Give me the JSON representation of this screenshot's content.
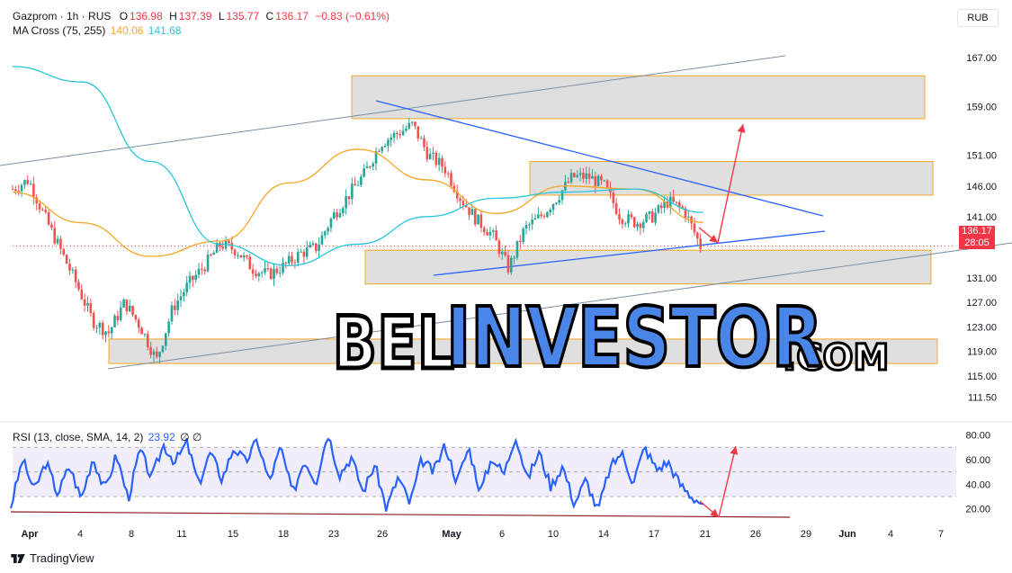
{
  "legend": {
    "symbol": "Gazprom · 1h · RUS",
    "o_label": "O",
    "o_value": "136.98",
    "h_label": "H",
    "h_value": "137.39",
    "l_label": "L",
    "l_value": "135.77",
    "c_label": "C",
    "c_value": "136.17",
    "change": "−0.83 (−0.61%)",
    "ma_name": "MA Cross (75, 255)",
    "ma_fast": "140.06",
    "ma_slow": "141.68",
    "rsi_name": "RSI (13, close, SMA, 14, 2)",
    "rsi_value": "23.92",
    "rsi_ext": "∅ ∅"
  },
  "currency": "RUB",
  "price_tag": {
    "price": "136.17",
    "countdown": "28:05"
  },
  "brand": "TradingView",
  "watermark": {
    "part1": "BEL",
    "part2": "INVESTOR",
    "part3": ".COM"
  },
  "colors": {
    "up": "#26a69a",
    "down": "#ef5350",
    "ma_fast": "#f5a623",
    "ma_slow": "#26c6da",
    "rsi": "#2962ff",
    "trend": "#2962ff",
    "zone_fill": "#d9d9d9",
    "zone_border": "#f5a623",
    "arrow": "#f23645"
  },
  "chart_data": [
    {
      "type": "candlestick",
      "title": "Gazprom · 1h · RUS",
      "y_ticks": [
        167.0,
        159.0,
        151.0,
        146.0,
        141.0,
        136.17,
        131.0,
        127.0,
        123.0,
        119.0,
        115.0,
        111.5
      ],
      "y_tick_labels": [
        "167.00",
        "159.00",
        "151.00",
        "146.00",
        "141.00",
        "",
        "131.00",
        "127.00",
        "123.00",
        "119.00",
        "115.00",
        "111.50"
      ],
      "x_ticks": [
        "Apr",
        "4",
        "8",
        "11",
        "15",
        "18",
        "23",
        "26",
        "May",
        "6",
        "10",
        "14",
        "17",
        "21",
        "26",
        "29",
        "Jun",
        "4",
        "7"
      ],
      "ylim": [
        108.5,
        170.5
      ],
      "close_path": [
        [
          "Mar 31",
          145.5
        ],
        [
          "Apr 1",
          147.0
        ],
        [
          "Apr 2",
          141.0
        ],
        [
          "Apr 3",
          135.5
        ],
        [
          "Apr 4",
          130.0
        ],
        [
          "Apr 5",
          124.0
        ],
        [
          "Apr 6",
          122.0
        ],
        [
          "Apr 7",
          127.0
        ],
        [
          "Apr 8",
          123.0
        ],
        [
          "Apr 9",
          117.5
        ],
        [
          "Apr 10",
          126.0
        ],
        [
          "Apr 11",
          130.0
        ],
        [
          "Apr 12",
          133.0
        ],
        [
          "Apr 13",
          136.5
        ],
        [
          "Apr 14",
          135.5
        ],
        [
          "Apr 15",
          132.5
        ],
        [
          "Apr 16",
          131.5
        ],
        [
          "Apr 17",
          133.0
        ],
        [
          "Apr 18",
          135.0
        ],
        [
          "Apr 19",
          136.0
        ],
        [
          "Apr 22",
          141.0
        ],
        [
          "Apr 23",
          144.5
        ],
        [
          "Apr 24",
          148.0
        ],
        [
          "Apr 25",
          153.0
        ],
        [
          "Apr 26",
          154.5
        ],
        [
          "Apr 27",
          156.0
        ],
        [
          "Apr 29",
          151.0
        ],
        [
          "Apr 30",
          149.0
        ],
        [
          "May 1",
          144.0
        ],
        [
          "May 3",
          140.5
        ],
        [
          "May 5",
          138.0
        ],
        [
          "May 6",
          132.5
        ],
        [
          "May 7",
          139.0
        ],
        [
          "May 8",
          141.0
        ],
        [
          "May 10",
          144.0
        ],
        [
          "May 11",
          147.5
        ],
        [
          "May 12",
          147.5
        ],
        [
          "May 13",
          146.0
        ],
        [
          "May 14",
          141.0
        ],
        [
          "May 15",
          140.0
        ],
        [
          "May 16",
          141.0
        ],
        [
          "May 17",
          143.5
        ],
        [
          "May 18",
          142.0
        ],
        [
          "May 20",
          136.17
        ]
      ],
      "series": [
        {
          "name": "MA 75",
          "values": [
            145.0,
            140.0,
            134.5,
            137.0,
            146.5,
            152.0,
            147.0,
            141.5,
            146.0,
            145.5,
            140.06
          ]
        },
        {
          "name": "MA 255",
          "values": [
            165.5,
            163.0,
            150.0,
            136.5,
            133.0,
            136.5,
            141.0,
            144.0,
            145.0,
            145.5,
            141.68
          ]
        }
      ],
      "zones": [
        {
          "from": 157.0,
          "to": 164.0
        },
        {
          "from": 144.5,
          "to": 150.0
        },
        {
          "from": 130.0,
          "to": 135.5
        },
        {
          "from": 117.0,
          "to": 121.0
        }
      ]
    },
    {
      "type": "line",
      "title": "RSI (13, close, SMA, 14, 2)",
      "y_ticks": [
        80.0,
        60.0,
        40.0,
        20.0
      ],
      "y_tick_labels": [
        "80.00",
        "60.00",
        "40.00",
        "20.00"
      ],
      "ylim": [
        11,
        87
      ],
      "bands": {
        "upper": 70,
        "middle": 50,
        "lower": 30
      },
      "values": [
        22,
        60,
        35,
        58,
        32,
        55,
        28,
        62,
        35,
        64,
        28,
        68,
        45,
        72,
        58,
        74,
        40,
        66,
        44,
        70,
        58,
        76,
        42,
        70,
        32,
        60,
        42,
        82,
        48,
        62,
        34,
        56,
        20,
        46,
        24,
        60,
        50,
        72,
        42,
        70,
        34,
        62,
        48,
        80,
        44,
        66,
        38,
        55,
        24,
        44,
        18,
        52,
        66,
        42,
        70,
        52,
        58,
        40,
        30,
        23.92
      ]
    }
  ]
}
